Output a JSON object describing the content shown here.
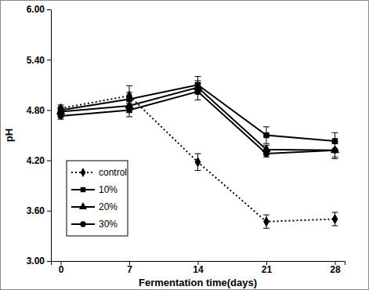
{
  "chart_data": {
    "type": "line",
    "x_label": "Fermentation time(days)",
    "y_label": "pH",
    "x": [
      0,
      7,
      14,
      21,
      28
    ],
    "xlim": [
      -1,
      29
    ],
    "xticks": [
      0,
      7,
      14,
      21,
      28
    ],
    "ylim": [
      3,
      6
    ],
    "yticks": [
      {
        "value": 3,
        "label": "3.00"
      },
      {
        "value": 3.6,
        "label": "3.60"
      },
      {
        "value": 4.2,
        "label": "4.20"
      },
      {
        "value": 4.8,
        "label": "4.80"
      },
      {
        "value": 5.4,
        "label": "5.40"
      },
      {
        "value": 6,
        "label": "6.00"
      }
    ],
    "grid": false,
    "legend": "lower left",
    "series": [
      {
        "name": "control",
        "color": "#000000",
        "marker": "diamond",
        "line_style": "dotted",
        "values": [
          4.82,
          4.97,
          4.18,
          3.47,
          3.5
        ],
        "errors": [
          0.04,
          0.12,
          0.1,
          0.08,
          0.08
        ]
      },
      {
        "name": "10%",
        "color": "#000000",
        "marker": "square",
        "line_style": "solid",
        "values": [
          4.8,
          4.93,
          5.1,
          4.5,
          4.43
        ],
        "errors": [
          0.04,
          0.08,
          0.1,
          0.1,
          0.1
        ]
      },
      {
        "name": "20%",
        "color": "#000000",
        "marker": "triangle",
        "line_style": "solid",
        "values": [
          4.78,
          4.85,
          5.07,
          4.33,
          4.32
        ],
        "errors": [
          0.04,
          0.08,
          0.08,
          0.05,
          0.08
        ]
      },
      {
        "name": "30%",
        "color": "#000000",
        "marker": "circle",
        "line_style": "solid",
        "values": [
          4.73,
          4.8,
          5.02,
          4.28,
          4.32
        ],
        "errors": [
          0.04,
          0.08,
          0.1,
          0.04,
          0.1
        ]
      }
    ]
  }
}
